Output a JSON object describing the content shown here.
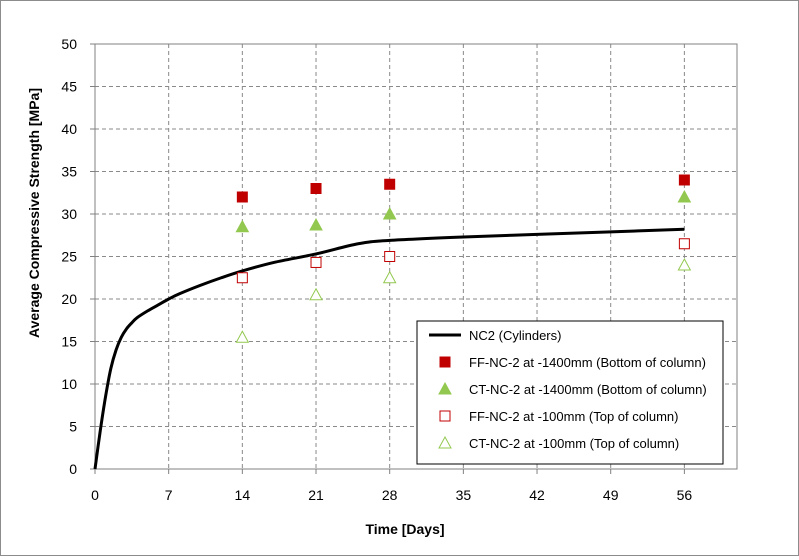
{
  "chart_data": {
    "type": "scatter",
    "title": "",
    "xlabel": "Time [Days]",
    "ylabel": "Average Compressive Strength [MPa]",
    "xlim": [
      0,
      61
    ],
    "ylim": [
      0,
      50
    ],
    "xticks": [
      0,
      7,
      14,
      21,
      28,
      35,
      42,
      49,
      56
    ],
    "yticks": [
      0,
      5,
      10,
      15,
      20,
      25,
      30,
      35,
      40,
      45,
      50
    ],
    "grid": true,
    "legend_position": "bottom-right",
    "series": [
      {
        "name": "NC2 (Cylinders)",
        "kind": "line",
        "color": "#000000",
        "x": [
          0,
          0.5,
          1,
          1.5,
          2,
          2.5,
          3,
          3.5,
          4,
          5,
          6,
          7,
          8,
          10,
          12,
          14,
          17,
          21,
          25,
          28,
          35,
          42,
          49,
          56
        ],
        "y": [
          0,
          4.5,
          8.5,
          11.8,
          14.0,
          15.5,
          16.5,
          17.2,
          17.8,
          18.6,
          19.3,
          20.0,
          20.6,
          21.6,
          22.5,
          23.3,
          24.3,
          25.3,
          26.5,
          26.9,
          27.3,
          27.6,
          27.9,
          28.2
        ]
      },
      {
        "name": "FF-NC-2 at -1400mm (Bottom of column)",
        "kind": "marker",
        "marker": "square-filled",
        "color": "#c00000",
        "x": [
          14,
          21,
          28,
          56
        ],
        "y": [
          32.0,
          33.0,
          33.5,
          34.0
        ]
      },
      {
        "name": "CT-NC-2 at -1400mm (Bottom of column)",
        "kind": "marker",
        "marker": "triangle-filled",
        "color": "#92c84f",
        "x": [
          14,
          21,
          28,
          56
        ],
        "y": [
          28.5,
          28.7,
          30.0,
          32.0
        ]
      },
      {
        "name": "FF-NC-2 at -100mm (Top of column)",
        "kind": "marker",
        "marker": "square-open",
        "color": "#c00000",
        "x": [
          14,
          21,
          28,
          56
        ],
        "y": [
          22.5,
          24.3,
          25.0,
          26.5
        ]
      },
      {
        "name": "CT-NC-2 at -100mm (Top of column)",
        "kind": "marker",
        "marker": "triangle-open",
        "color": "#92c84f",
        "x": [
          14,
          21,
          28,
          56
        ],
        "y": [
          15.5,
          20.5,
          22.5,
          24.0
        ]
      }
    ]
  }
}
